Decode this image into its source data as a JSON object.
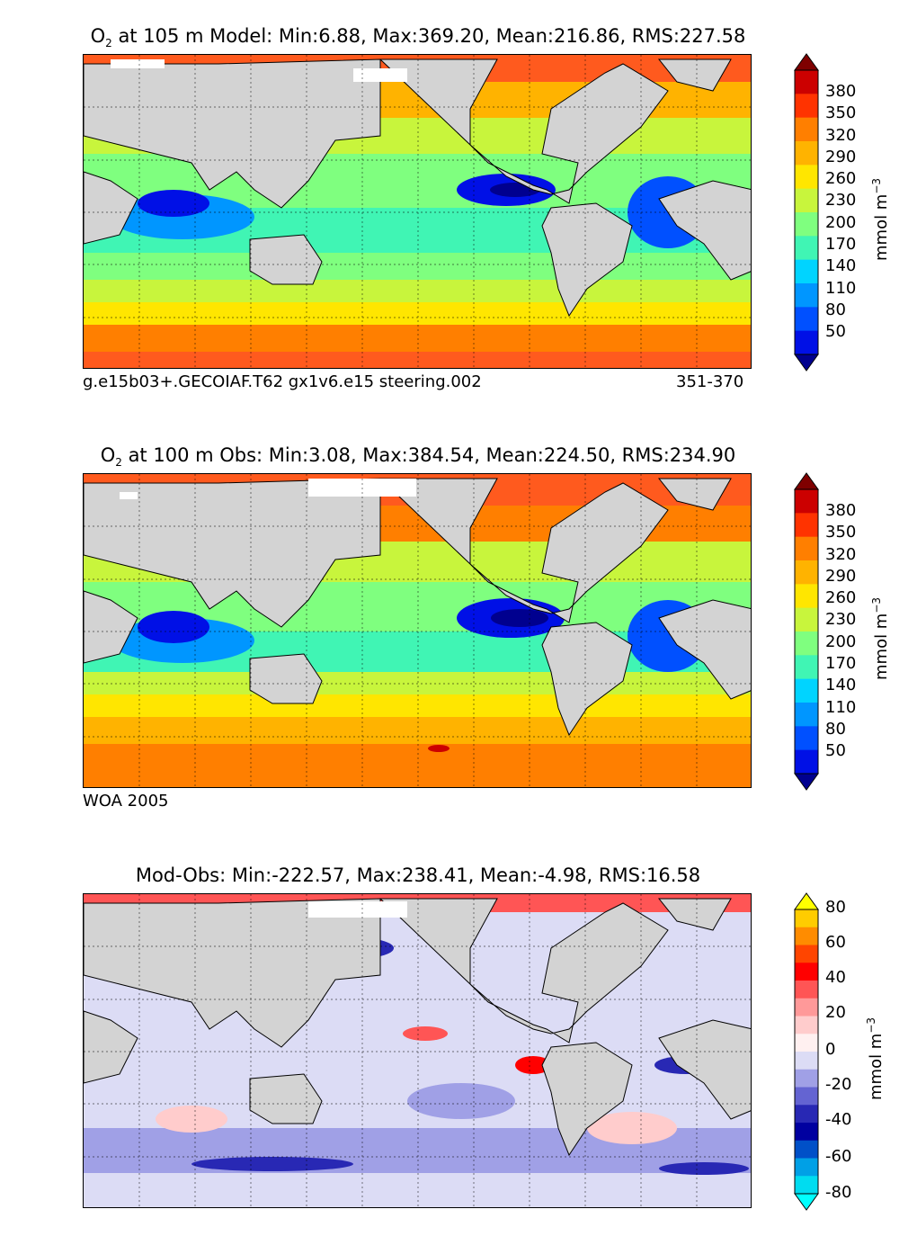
{
  "panels": [
    {
      "id": "model",
      "title_prefix": "O",
      "title_sub": "2",
      "title_rest": " at 105 m Model: Min:6.88, Max:369.20, Mean:216.86, RMS:227.58",
      "footer_left": "g.e15b03+.GECOIAF.T62 gx1v6.e15 steering.002",
      "footer_right": "351-370",
      "unit": "mmol m",
      "unit_exp": "−3",
      "colorbar": {
        "ticks": [
          "380",
          "350",
          "320",
          "290",
          "260",
          "230",
          "200",
          "170",
          "140",
          "110",
          "80",
          "50"
        ],
        "colors": [
          "#7f0000",
          "#cc0000",
          "#ff3300",
          "#ff7f00",
          "#ffb300",
          "#ffe600",
          "#c8f53c",
          "#7fff7f",
          "#40f5b4",
          "#00d4ff",
          "#0096ff",
          "#0050ff",
          "#0010e6",
          "#00008f"
        ]
      }
    },
    {
      "id": "obs",
      "title_prefix": "O",
      "title_sub": "2",
      "title_rest": " at 100 m Obs: Min:3.08, Max:384.54, Mean:224.50, RMS:234.90",
      "footer_left": "WOA 2005",
      "footer_right": "",
      "unit": "mmol m",
      "unit_exp": "−3",
      "colorbar": {
        "ticks": [
          "380",
          "350",
          "320",
          "290",
          "260",
          "230",
          "200",
          "170",
          "140",
          "110",
          "80",
          "50"
        ],
        "colors": [
          "#7f0000",
          "#cc0000",
          "#ff3300",
          "#ff7f00",
          "#ffb300",
          "#ffe600",
          "#c8f53c",
          "#7fff7f",
          "#40f5b4",
          "#00d4ff",
          "#0096ff",
          "#0050ff",
          "#0010e6",
          "#00008f"
        ]
      }
    },
    {
      "id": "diff",
      "title_prefix": "",
      "title_sub": "",
      "title_rest": "Mod-Obs: Min:-222.57, Max:238.41, Mean:-4.98, RMS:16.58",
      "footer_left": "",
      "footer_right": "",
      "unit": "mmol m",
      "unit_exp": "−3",
      "colorbar": {
        "ticks": [
          "80",
          "60",
          "40",
          "20",
          "0",
          "-20",
          "-40",
          "-60",
          "-80"
        ],
        "colors": [
          "#ffff00",
          "#ffcc00",
          "#ff8c00",
          "#ff4500",
          "#ff0000",
          "#ff5555",
          "#ff9999",
          "#ffcccc",
          "#fff0f0",
          "#dcdcf5",
          "#a0a0e6",
          "#6464d2",
          "#2828b4",
          "#0000a0",
          "#0050c8",
          "#00a0e6",
          "#00dcf0",
          "#00ffff"
        ]
      }
    }
  ]
}
